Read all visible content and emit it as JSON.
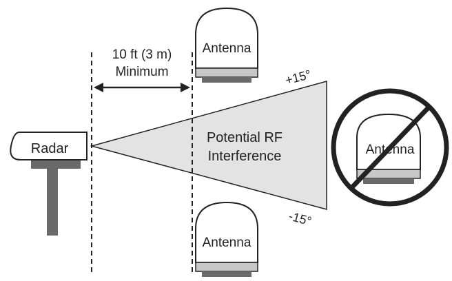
{
  "diagram": {
    "radar_label": "Radar",
    "distance_line1": "10 ft (3 m)",
    "distance_line2": "Minimum",
    "angle_upper": "+15°",
    "angle_lower": "-15°",
    "zone_line1": "Potential RF",
    "zone_line2": "Interference",
    "antenna_top_label": "Antenna",
    "antenna_bottom_label": "Antenna",
    "antenna_blocked_label": "Antenna"
  },
  "colors": {
    "interference_fill": "#e3e3e3",
    "outline": "#222222",
    "antenna_band": "#c8c8c8",
    "antenna_base": "#6a6a6a",
    "radar_post": "#6a6a6a"
  }
}
